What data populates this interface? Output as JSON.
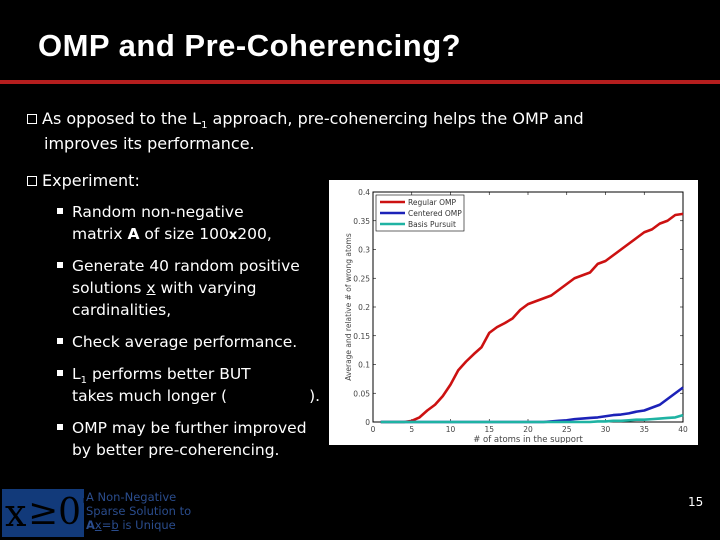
{
  "slide": {
    "title": "OMP and Pre-Coherencing?",
    "page_number": "15"
  },
  "bullets": {
    "b1_line1_pre": "As opposed to the L",
    "b1_line1_sub": "1",
    "b1_line1_post": " approach, pre-cohenercing helps the OMP and",
    "b1_line2": "improves its performance.",
    "b2": "Experiment:"
  },
  "subbullets": {
    "s1_line1": "Random non-negative",
    "s1_line2_pre": "matrix ",
    "s1_line2_bold": "A",
    "s1_line2_mid": " of size 100",
    "s1_line2_x": "x",
    "s1_line2_post": "200,",
    "s2_line1": "Generate 40 random positive",
    "s2_line2_pre": "solutions ",
    "s2_line2_u": "x",
    "s2_line2_post": " with varying",
    "s2_line3": "cardinalities,",
    "s3": "Check average performance.",
    "s4_line1_pre": "L",
    "s4_line1_sub": "1",
    "s4_line1_post": " performs better BUT",
    "s4_line2_pre": "takes much longer (",
    "s4_line2_post": ").",
    "s5_line1": "OMP may be further improved",
    "s5_line2": "by better pre-coherencing."
  },
  "footer": {
    "logo_x": "x",
    "logo_ge": "≥0?",
    "line1": "A Non-Negative",
    "line2": "Sparse Solution to",
    "line3_a": "A",
    "line3_x": "x",
    "line3_eq": "=",
    "line3_b": "b",
    "line3_post": " is Unique"
  },
  "colors": {
    "regular_omp": "#cc1111",
    "centered_omp": "#1c22b8",
    "basis_pursuit": "#1fb3a3",
    "accent_rule": "#b51e1e"
  },
  "chart_data": {
    "type": "line",
    "title": "",
    "xlabel": "# of atoms in the support",
    "ylabel": "Average and relative # of wrong atoms",
    "xlim": [
      0,
      40
    ],
    "ylim": [
      0,
      0.4
    ],
    "x_ticks": [
      "0",
      "5",
      "10",
      "15",
      "20",
      "25",
      "30",
      "35",
      "40"
    ],
    "y_ticks": [
      "0",
      "0.05",
      "0.1",
      "0.15",
      "0.2",
      "0.25",
      "0.3",
      "0.35",
      "0.4"
    ],
    "legend_position": "top-left",
    "x": [
      1,
      2,
      3,
      4,
      5,
      6,
      7,
      8,
      9,
      10,
      11,
      12,
      13,
      14,
      15,
      16,
      17,
      18,
      19,
      20,
      21,
      22,
      23,
      24,
      25,
      26,
      27,
      28,
      29,
      30,
      31,
      32,
      33,
      34,
      35,
      36,
      37,
      38,
      39,
      40
    ],
    "series": [
      {
        "name": "Regular OMP",
        "values": [
          0,
          0,
          0,
          0,
          0.002,
          0.008,
          0.02,
          0.03,
          0.045,
          0.065,
          0.09,
          0.105,
          0.118,
          0.13,
          0.155,
          0.165,
          0.172,
          0.18,
          0.195,
          0.205,
          0.21,
          0.215,
          0.22,
          0.23,
          0.24,
          0.25,
          0.255,
          0.26,
          0.275,
          0.28,
          0.29,
          0.3,
          0.31,
          0.32,
          0.33,
          0.335,
          0.345,
          0.35,
          0.36,
          0.362
        ]
      },
      {
        "name": "Centered OMP",
        "values": [
          0,
          0,
          0,
          0,
          0,
          0,
          0,
          0,
          0,
          0,
          0,
          0,
          0,
          0,
          0,
          0,
          0,
          0,
          0,
          0,
          0,
          0,
          0.001,
          0.002,
          0.003,
          0.005,
          0.006,
          0.007,
          0.008,
          0.01,
          0.012,
          0.013,
          0.015,
          0.018,
          0.02,
          0.025,
          0.03,
          0.04,
          0.05,
          0.06
        ]
      },
      {
        "name": "Basis Pursuit",
        "values": [
          0,
          0,
          0,
          0,
          0,
          0,
          0,
          0,
          0,
          0,
          0,
          0,
          0,
          0,
          0,
          0,
          0,
          0,
          0,
          0,
          0,
          0,
          0,
          0,
          0,
          0,
          0,
          0,
          0.001,
          0.001,
          0.002,
          0.002,
          0.003,
          0.004,
          0.004,
          0.005,
          0.006,
          0.007,
          0.008,
          0.012
        ]
      }
    ]
  }
}
